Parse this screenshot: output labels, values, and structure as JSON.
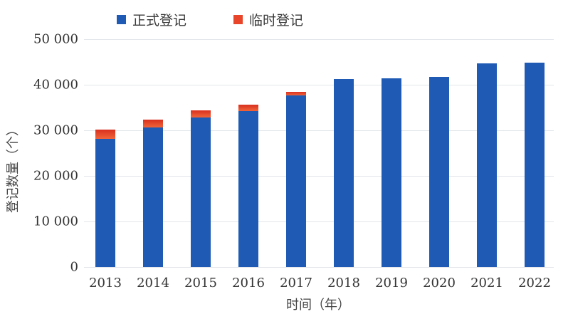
{
  "chart_data": {
    "type": "bar",
    "stacked": true,
    "title": "",
    "xlabel": "时间（年）",
    "ylabel": "登记数量（个）",
    "ylim": [
      0,
      50000
    ],
    "yticks": [
      0,
      10000,
      20000,
      30000,
      40000,
      50000
    ],
    "ytick_labels": [
      "0",
      "10 000",
      "20 000",
      "30 000",
      "40 000",
      "50 000"
    ],
    "grid": true,
    "legend_position": "top",
    "categories": [
      "2013",
      "2014",
      "2015",
      "2016",
      "2017",
      "2018",
      "2019",
      "2020",
      "2021",
      "2022"
    ],
    "series": [
      {
        "name": "正式登记",
        "color": "#1f5bb5",
        "values": [
          28200,
          30600,
          32800,
          34200,
          37600,
          41300,
          41400,
          41700,
          44700,
          44900
        ]
      },
      {
        "name": "临时登记",
        "color": "#e8452a",
        "values": [
          1900,
          1800,
          1600,
          1500,
          800,
          0,
          0,
          0,
          0,
          0
        ]
      }
    ]
  },
  "legend": [
    {
      "label": "正式登记",
      "color": "#1f5bb5"
    },
    {
      "label": "临时登记",
      "color": "#e8452a"
    }
  ]
}
